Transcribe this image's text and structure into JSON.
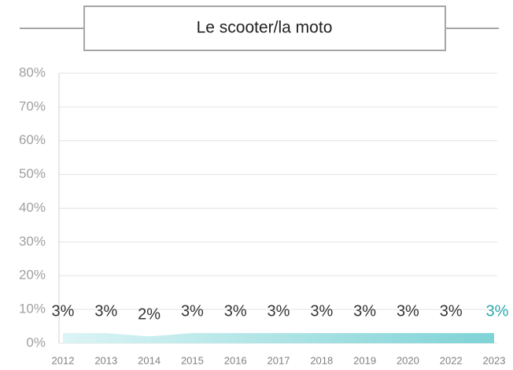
{
  "chart_data": {
    "type": "area",
    "title": "Le scooter/la moto",
    "categories": [
      "2012",
      "2013",
      "2014",
      "2015",
      "2016",
      "2017",
      "2018",
      "2019",
      "2020",
      "2022",
      "2023"
    ],
    "values": [
      3,
      3,
      2,
      3,
      3,
      3,
      3,
      3,
      3,
      3,
      3
    ],
    "value_labels": [
      "3%",
      "3%",
      "2%",
      "3%",
      "3%",
      "3%",
      "3%",
      "3%",
      "3%",
      "3%",
      "3%"
    ],
    "colors": [
      "#dcf4f5",
      "#7fd3d6"
    ],
    "value_label_color": "#333333",
    "highlight_color": "#2ba8ac",
    "ylim": [
      0,
      80
    ],
    "yticks": [
      {
        "value": 0,
        "label": "0%"
      },
      {
        "value": 10,
        "label": "10%"
      },
      {
        "value": 20,
        "label": "20%"
      },
      {
        "value": 30,
        "label": "30%"
      },
      {
        "value": 40,
        "label": "40%"
      },
      {
        "value": 50,
        "label": "50%"
      },
      {
        "value": 60,
        "label": "60%"
      },
      {
        "value": 70,
        "label": "70%"
      },
      {
        "value": 80,
        "label": "80%"
      }
    ],
    "grid": true
  }
}
